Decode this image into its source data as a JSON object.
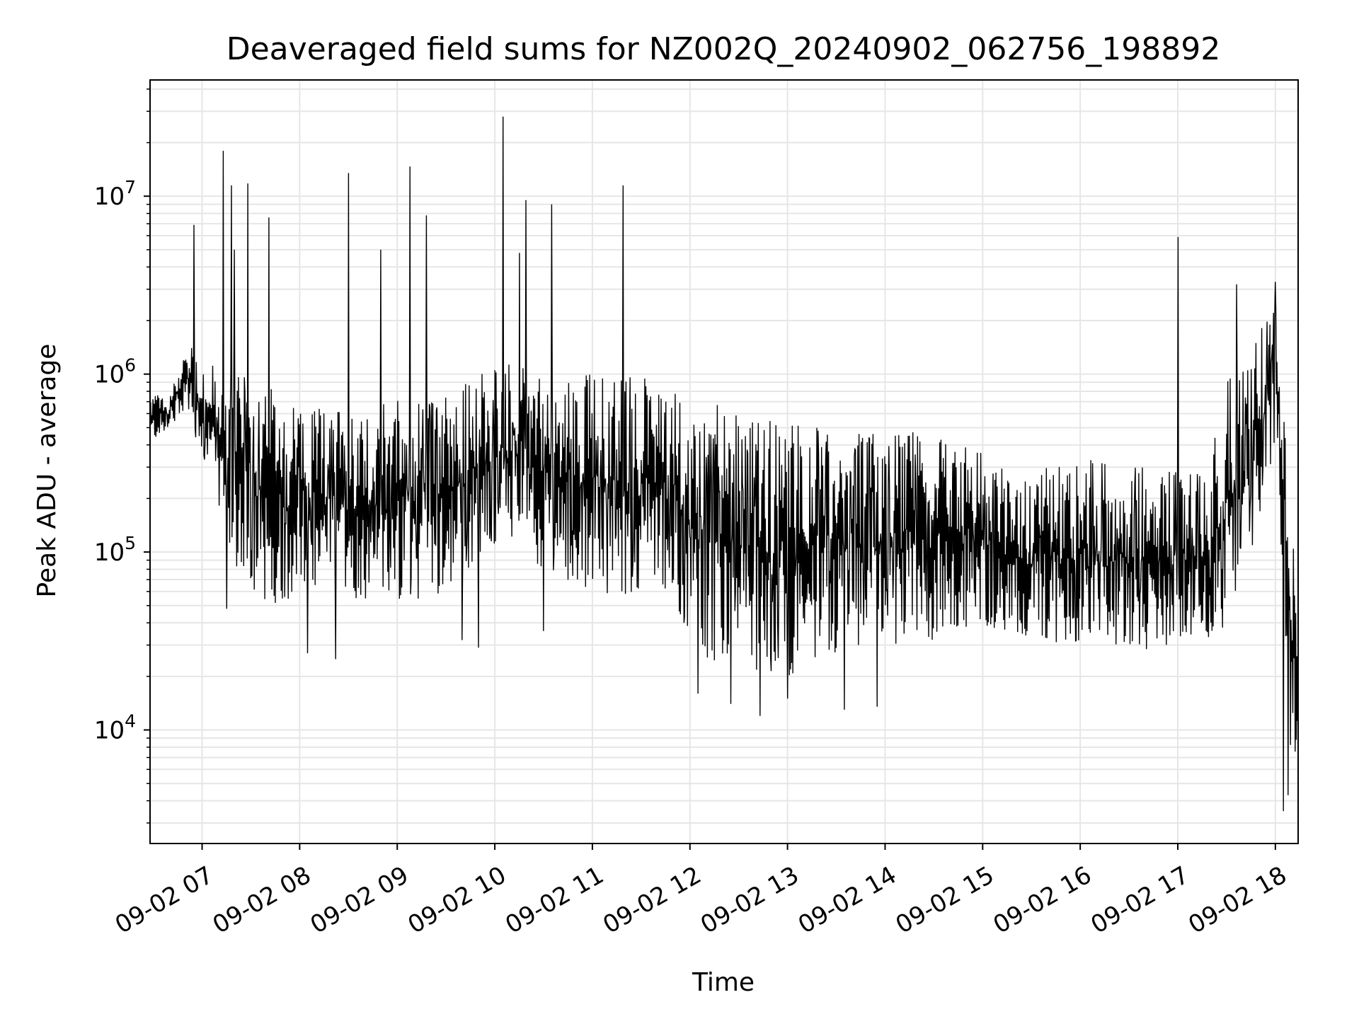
{
  "chart_data": {
    "type": "line",
    "title": "Deaveraged field sums for NZ002Q_20240902_062756_198892",
    "xlabel": "Time",
    "ylabel": "Peak ADU - average",
    "y_scale": "log",
    "ylim": [
      2300,
      45000000
    ],
    "xlim": [
      "09-02 06:28",
      "09-02 18:14"
    ],
    "grid": true,
    "series_color": "#000000",
    "x_ticks": [
      "09-02 07",
      "09-02 08",
      "09-02 09",
      "09-02 10",
      "09-02 11",
      "09-02 12",
      "09-02 13",
      "09-02 14",
      "09-02 15",
      "09-02 16",
      "09-02 17",
      "09-02 18"
    ],
    "y_ticks": [
      {
        "value": 10000,
        "base": "10",
        "exp": "4"
      },
      {
        "value": 100000,
        "base": "10",
        "exp": "5"
      },
      {
        "value": 1000000,
        "base": "10",
        "exp": "6"
      },
      {
        "value": 10000000,
        "base": "10",
        "exp": "7"
      }
    ],
    "envelope": {
      "time": [
        "06:28",
        "06:40",
        "06:50",
        "07:00",
        "07:10",
        "07:20",
        "07:40",
        "08:00",
        "08:30",
        "09:00",
        "09:30",
        "10:00",
        "10:30",
        "11:00",
        "11:30",
        "11:50",
        "12:00",
        "12:30",
        "13:00",
        "13:30",
        "14:00",
        "14:30",
        "15:00",
        "15:20",
        "15:40",
        "16:00",
        "16:30",
        "17:00",
        "17:20",
        "17:30",
        "17:45",
        "18:00",
        "18:05",
        "18:10",
        "18:14"
      ],
      "low": [
        400000,
        500000,
        650000,
        300000,
        150000,
        80000,
        50000,
        55000,
        55000,
        50000,
        60000,
        110000,
        80000,
        60000,
        55000,
        60000,
        25000,
        22000,
        20000,
        25000,
        28000,
        32000,
        40000,
        30000,
        30000,
        28000,
        27000,
        28000,
        30000,
        40000,
        100000,
        400000,
        60000,
        5000,
        8000
      ],
      "high": [
        800000,
        750000,
        1500000,
        1300000,
        1100000,
        1000000,
        900000,
        700000,
        650000,
        750000,
        800000,
        1200000,
        1000000,
        1000000,
        1000000,
        800000,
        800000,
        600000,
        550000,
        500000,
        500000,
        450000,
        400000,
        250000,
        300000,
        350000,
        300000,
        300000,
        400000,
        900000,
        1500000,
        2500000,
        1000000,
        150000,
        40000
      ]
    },
    "spikes": [
      {
        "time": "06:55",
        "value": 6900000
      },
      {
        "time": "07:13",
        "value": 18000000
      },
      {
        "time": "07:18",
        "value": 11500000
      },
      {
        "time": "07:20",
        "value": 5000000
      },
      {
        "time": "07:28",
        "value": 11800000
      },
      {
        "time": "07:41",
        "value": 7600000
      },
      {
        "time": "08:30",
        "value": 13500000
      },
      {
        "time": "08:50",
        "value": 5000000
      },
      {
        "time": "09:08",
        "value": 14700000
      },
      {
        "time": "09:18",
        "value": 7800000
      },
      {
        "time": "10:05",
        "value": 28000000
      },
      {
        "time": "10:15",
        "value": 4800000
      },
      {
        "time": "10:19",
        "value": 9500000
      },
      {
        "time": "10:35",
        "value": 9000000
      },
      {
        "time": "11:19",
        "value": 11500000
      },
      {
        "time": "17:00",
        "value": 5900000
      },
      {
        "time": "17:36",
        "value": 3200000
      },
      {
        "time": "18:00",
        "value": 3300000
      }
    ],
    "dips": [
      {
        "time": "07:15",
        "value": 48000
      },
      {
        "time": "08:05",
        "value": 27000
      },
      {
        "time": "08:22",
        "value": 25000
      },
      {
        "time": "09:40",
        "value": 32000
      },
      {
        "time": "09:50",
        "value": 29000
      },
      {
        "time": "10:30",
        "value": 36000
      },
      {
        "time": "12:05",
        "value": 16000
      },
      {
        "time": "12:25",
        "value": 14000
      },
      {
        "time": "12:43",
        "value": 12000
      },
      {
        "time": "13:00",
        "value": 15000
      },
      {
        "time": "13:35",
        "value": 13000
      },
      {
        "time": "13:55",
        "value": 13500
      },
      {
        "time": "18:05",
        "value": 3500
      },
      {
        "time": "18:08",
        "value": 4300
      }
    ]
  }
}
